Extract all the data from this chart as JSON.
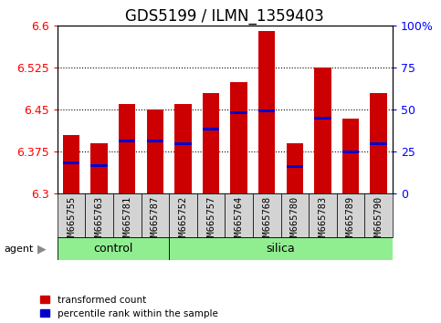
{
  "title": "GDS5199 / ILMN_1359403",
  "samples": [
    "GSM665755",
    "GSM665763",
    "GSM665781",
    "GSM665787",
    "GSM665752",
    "GSM665757",
    "GSM665764",
    "GSM665768",
    "GSM665780",
    "GSM665783",
    "GSM665789",
    "GSM665790"
  ],
  "bar_values": [
    6.405,
    6.39,
    6.46,
    6.45,
    6.46,
    6.48,
    6.5,
    6.59,
    6.39,
    6.525,
    6.435,
    6.48
  ],
  "percentile_values": [
    6.355,
    6.35,
    6.395,
    6.395,
    6.39,
    6.415,
    6.445,
    6.448,
    6.348,
    6.435,
    6.375,
    6.39
  ],
  "ylim_left": [
    6.3,
    6.6
  ],
  "yticks_left": [
    6.3,
    6.375,
    6.45,
    6.525,
    6.6
  ],
  "yticks_right": [
    0,
    25,
    50,
    75,
    100
  ],
  "bar_color": "#cc0000",
  "percentile_color": "#0000cc",
  "bar_width": 0.6,
  "green_color": "#90ee90",
  "gray_color": "#d3d3d3",
  "legend_red_label": "transformed count",
  "legend_blue_label": "percentile rank within the sample",
  "title_fontsize": 12,
  "tick_fontsize": 9,
  "label_fontsize": 9,
  "n_control": 4,
  "n_silica": 8
}
